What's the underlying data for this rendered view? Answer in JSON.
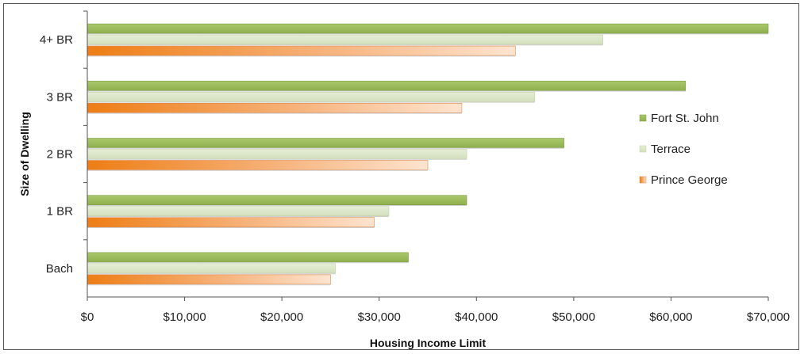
{
  "chart_data": {
    "type": "bar",
    "orientation": "horizontal",
    "categories": [
      "Bach",
      "1 BR",
      "2 BR",
      "3 BR",
      "4+ BR"
    ],
    "series": [
      {
        "name": "Fort St. John",
        "values": [
          33000,
          39000,
          49000,
          61500,
          70000
        ]
      },
      {
        "name": "Terrace",
        "values": [
          25500,
          31000,
          39000,
          46000,
          53000
        ]
      },
      {
        "name": "Prince George",
        "values": [
          25000,
          29500,
          35000,
          38500,
          44000
        ]
      }
    ],
    "x_ticks": [
      0,
      10000,
      20000,
      30000,
      40000,
      50000,
      60000,
      70000
    ],
    "x_tick_labels": [
      "$0",
      "$10,000",
      "$20,000",
      "$30,000",
      "$40,000",
      "$50,000",
      "$60,000",
      "$70,000"
    ],
    "xlabel": "Housing Income Limit",
    "ylabel": "Size of Dwelling",
    "xlim": [
      0,
      70000
    ],
    "grid": false,
    "legend_position": "right",
    "colors": {
      "Fort St. John": "#9bbb59",
      "Terrace": "#d7e4bd",
      "Prince George": "#f79646"
    }
  }
}
